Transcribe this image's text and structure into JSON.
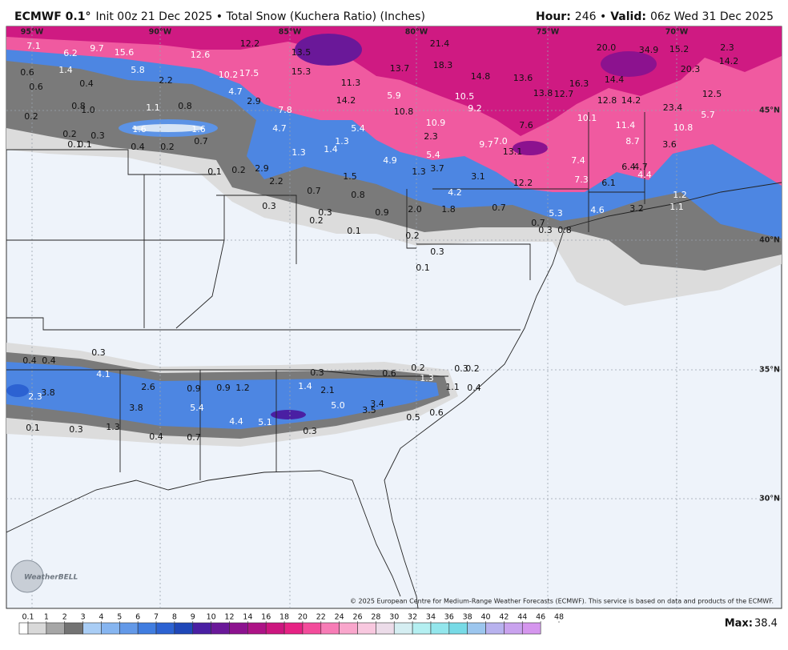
{
  "header": {
    "title_bold": "ECMWF 0.1°",
    "title_rest": "Init 00z 21 Dec 2025 • Total Snow (Kuchera Ratio) (Inches)",
    "hour_label": "Hour:",
    "hour_value": "246 •",
    "valid_label": "Valid:",
    "valid_value": "06z Wed 31 Dec 2025"
  },
  "map": {
    "longitudes": [
      "95°W",
      "90°W",
      "85°W",
      "80°W",
      "75°W",
      "70°W"
    ],
    "latitudes": [
      "45°N",
      "40°N",
      "35°N",
      "30°N"
    ],
    "snow_labels": [
      "7.1",
      "6.2",
      "9.7",
      "15.6",
      "12.6",
      "12.2",
      "13.5",
      "21.4",
      "20.0",
      "34.9",
      "15.2",
      "2.3",
      "14.2",
      "20.3",
      "0.6",
      "1.4",
      "5.8",
      "2.2",
      "10.2",
      "17.5",
      "15.3",
      "13.7",
      "18.3",
      "0.6",
      "0.4",
      "4.7",
      "11.3",
      "14.8",
      "13.6",
      "16.3",
      "14.4",
      "0.8",
      "1.0",
      "1.1",
      "0.8",
      "2.9",
      "14.2",
      "5.9",
      "10.5",
      "13.8",
      "12.7",
      "12.8",
      "14.2",
      "23.4",
      "12.5",
      "7.8",
      "10.8",
      "9.2",
      "5.7",
      "0.2",
      "1.6",
      "1.6",
      "4.7",
      "5.4",
      "10.9",
      "7.6",
      "10.1",
      "11.4",
      "10.8",
      "0.2",
      "0.3",
      "0.1",
      "0.1",
      "0.4",
      "0.2",
      "0.7",
      "2.3",
      "9.7",
      "7.0",
      "8.7",
      "3.6",
      "1.3",
      "1.4",
      "1.3",
      "13.1",
      "5.4",
      "4.9",
      "3.7",
      "7.4",
      "0.1",
      "0.2",
      "2.9",
      "1.5",
      "1.3",
      "3.1",
      "6.4",
      "4.7",
      "4.4",
      "2.2",
      "12.2",
      "7.3",
      "6.1",
      "0.7",
      "0.8",
      "4.2",
      "1.2",
      "0.3",
      "0.3",
      "0.9",
      "2.0",
      "1.8",
      "0.7",
      "5.3",
      "4.6",
      "3.2",
      "1.1",
      "0.2",
      "0.1",
      "0.7",
      "0.3",
      "0.8",
      "0.2",
      "0.3",
      "0.1",
      "0.3",
      "0.4",
      "0.4",
      "4.1",
      "0.3",
      "0.6",
      "0.2",
      "0.3",
      "0.2",
      "1.3",
      "2.3",
      "3.8",
      "2.6",
      "0.9",
      "0.9",
      "1.2",
      "1.4",
      "2.1",
      "1.1",
      "0.4",
      "3.8",
      "5.4",
      "5.0",
      "3.4",
      "3.5",
      "4.4",
      "5.1",
      "0.5",
      "0.6",
      "0.1",
      "0.3",
      "1.3",
      "0.4",
      "0.7",
      "0.3"
    ],
    "copyright": "© 2025 European Centre for Medium-Range Weather Forecasts (ECMWF). This service is based on data and products of the ECMWF.",
    "logo": "WeatherBELL"
  },
  "legend": {
    "ticks": [
      0.1,
      1,
      2,
      3,
      4,
      5,
      6,
      7,
      8,
      9,
      10,
      12,
      14,
      16,
      18,
      20,
      22,
      24,
      26,
      28,
      30,
      32,
      34,
      36,
      38,
      40,
      42,
      44,
      46,
      48
    ],
    "colors": [
      "#ffffff",
      "#d9d9d9",
      "#a6a6a6",
      "#737373",
      "#a9cdf5",
      "#86b5f0",
      "#6399e8",
      "#407de0",
      "#2c62d2",
      "#1f47b8",
      "#4a1fa3",
      "#6a1899",
      "#8c128f",
      "#ad1386",
      "#cc167f",
      "#e62284",
      "#f34c9b",
      "#f77cb6",
      "#f9a6cc",
      "#f8c8df",
      "#ecdce9",
      "#d5eef2",
      "#b4eff1",
      "#93e6ec",
      "#77dae6",
      "#9cc6ee",
      "#b8b2ee",
      "#c9a2ee",
      "#d596ee"
    ],
    "max_label": "Max:",
    "max_value": 38.4
  }
}
